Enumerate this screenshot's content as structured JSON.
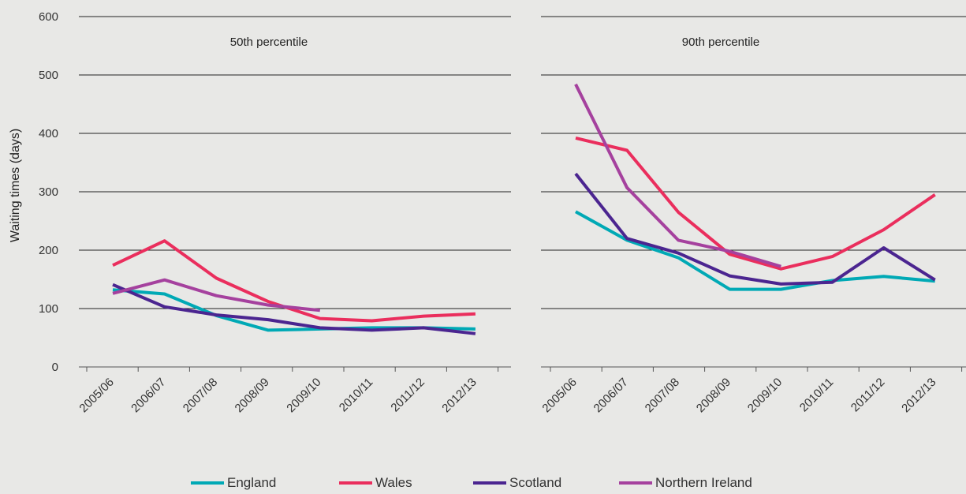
{
  "chart_data": {
    "type": "line",
    "ylabel": "Waiting times (days)",
    "ylim": [
      0,
      600
    ],
    "yticks": [
      "0",
      "100",
      "200",
      "300",
      "400",
      "500",
      "600"
    ],
    "categories": [
      "2005/06",
      "2006/07",
      "2007/08",
      "2008/09",
      "2009/10",
      "2010/11",
      "2011/12",
      "2012/13"
    ],
    "grid": true,
    "legend_position": "bottom",
    "panels": [
      {
        "title": "50th percentile",
        "series": [
          {
            "name": "England",
            "color": "#00a9b5",
            "values": [
              132,
              125,
              88,
              63,
              65,
              67,
              67,
              65
            ]
          },
          {
            "name": "Wales",
            "color": "#ea2e5d",
            "values": [
              174,
              216,
              152,
              112,
              83,
              79,
              87,
              91
            ]
          },
          {
            "name": "Scotland",
            "color": "#4b2590",
            "values": [
              141,
              103,
              89,
              81,
              67,
              63,
              67,
              57
            ]
          },
          {
            "name": "Northern Ireland",
            "color": "#a5419e",
            "values": [
              126,
              149,
              122,
              106,
              97,
              null,
              null,
              null
            ]
          }
        ]
      },
      {
        "title": "90th percentile",
        "series": [
          {
            "name": "England",
            "color": "#00a9b5",
            "values": [
              266,
              217,
              187,
              133,
              133,
              148,
              155,
              147
            ]
          },
          {
            "name": "Wales",
            "color": "#ea2e5d",
            "values": [
              392,
              371,
              265,
              193,
              168,
              189,
              235,
              295
            ]
          },
          {
            "name": "Scotland",
            "color": "#4b2590",
            "values": [
              331,
              220,
              195,
              156,
              142,
              145,
              204,
              149
            ]
          },
          {
            "name": "Northern Ireland",
            "color": "#a5419e",
            "values": [
              484,
              307,
              217,
              198,
              172,
              null,
              null,
              null
            ]
          }
        ]
      }
    ]
  }
}
